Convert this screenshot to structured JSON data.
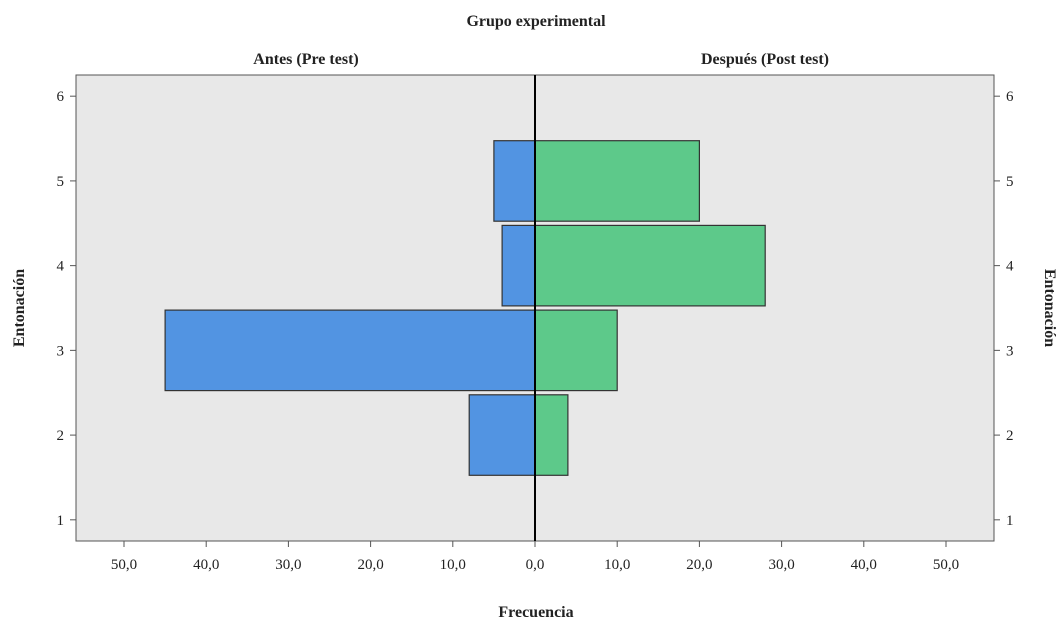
{
  "chart_data": {
    "type": "bar",
    "orientation": "horizontal",
    "layout": "population-pyramid",
    "title": "Grupo experimental",
    "panels": [
      "Antes (Pre test)",
      "Después (Post test)"
    ],
    "xlabel": "Frecuencia",
    "ylabel": "Entonación",
    "ylabel_right": "Entonación",
    "categories": [
      2,
      3,
      4,
      5
    ],
    "y_ticks": [
      "1",
      "2",
      "3",
      "4",
      "5",
      "6"
    ],
    "y_range": [
      0.75,
      6.25
    ],
    "x_ticks_left": [
      "50,0",
      "40,0",
      "30,0",
      "20,0",
      "10,0"
    ],
    "x_ticks_center": "0,0",
    "x_ticks_right": [
      "10,0",
      "20,0",
      "30,0",
      "40,0",
      "50,0"
    ],
    "x_range": [
      0,
      50
    ],
    "series": [
      {
        "name": "Antes (Pre test)",
        "side": "left",
        "color": "#5294e2",
        "values": [
          8,
          45,
          4,
          5
        ]
      },
      {
        "name": "Después (Post test)",
        "side": "right",
        "color": "#5dc98a",
        "values": [
          4,
          10,
          28,
          20
        ]
      }
    ],
    "plot_background": "#e8e8e8",
    "grid": false,
    "legend": "none"
  }
}
